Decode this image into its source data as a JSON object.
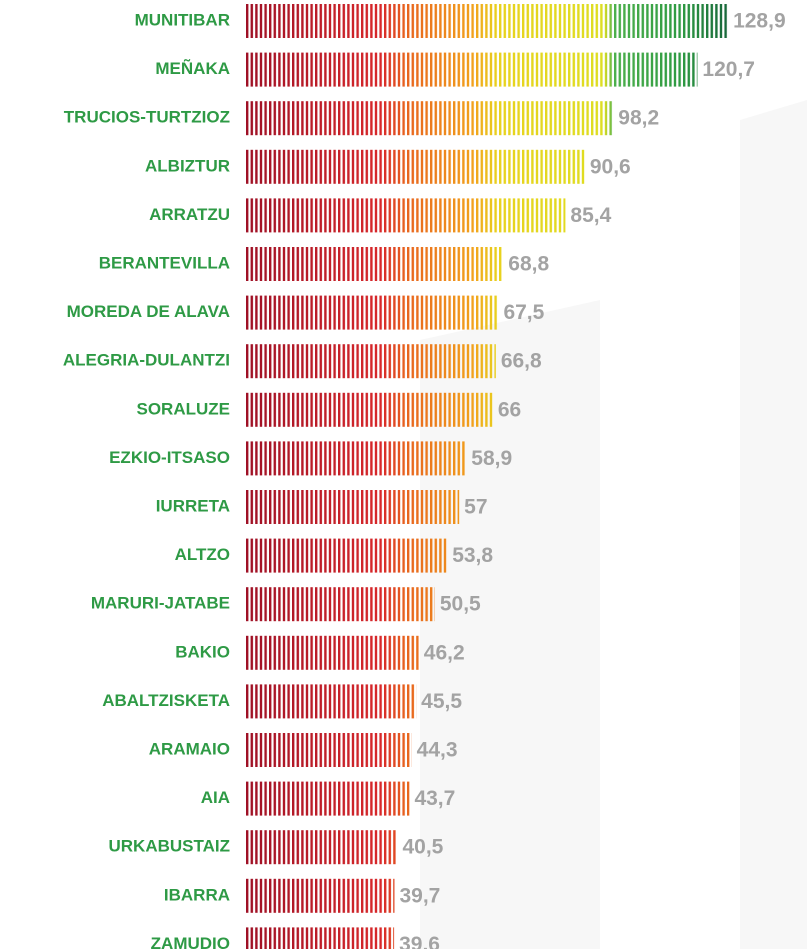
{
  "chart_data": {
    "type": "bar",
    "orientation": "horizontal",
    "categories": [
      "MUNITIBAR",
      "MEÑAKA",
      "TRUCIOS-TURTZIOZ",
      "ALBIZTUR",
      "ARRATZU",
      "BERANTEVILLA",
      "MOREDA DE ALAVA",
      "ALEGRIA-DULANTZI",
      "SORALUZE",
      "EZKIO-ITSASO",
      "IURRETA",
      "ALTZO",
      "MARURI-JATABE",
      "BAKIO",
      "ABALTZISKETA",
      "ARAMAIO",
      "AIA",
      "URKABUSTAIZ",
      "IBARRA",
      "ZAMUDIO"
    ],
    "values": [
      128.9,
      120.7,
      98.2,
      90.6,
      85.4,
      68.8,
      67.5,
      66.8,
      66,
      58.9,
      57,
      53.8,
      50.5,
      46.2,
      45.5,
      44.3,
      43.7,
      40.5,
      39.7,
      39.6
    ],
    "value_labels": [
      "128,9",
      "120,7",
      "98,2",
      "90,6",
      "85,4",
      "68,8",
      "67,5",
      "66,8",
      "66",
      "58,9",
      "57",
      "53,8",
      "50,5",
      "46,2",
      "45,5",
      "44,3",
      "43,7",
      "40,5",
      "39,7",
      "39,6"
    ]
  }
}
